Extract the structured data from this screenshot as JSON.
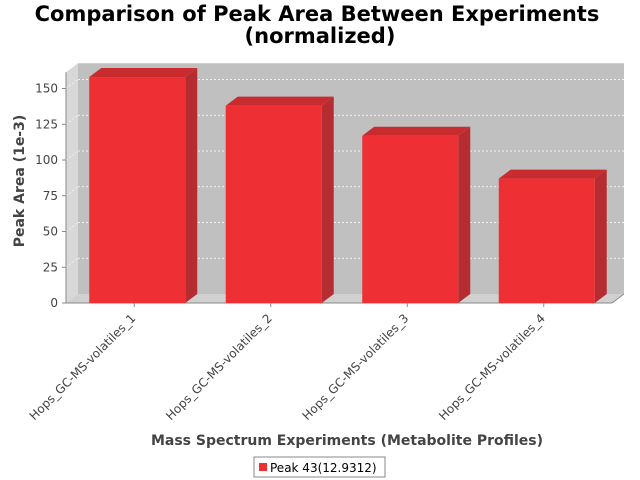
{
  "chart_data": {
    "type": "bar",
    "title_lines": [
      "Comparison of Peak Area Between Experiments",
      "(normalized)"
    ],
    "xlabel": "Mass Spectrum Experiments (Metabolite Profiles)",
    "ylabel": "Peak Area (1e-3)",
    "categories": [
      "Hops_GC-MS-volatiles_1",
      "Hops_GC-MS-volatiles_2",
      "Hops_GC-MS-volatiles_3",
      "Hops_GC-MS-volatiles_4"
    ],
    "series": [
      {
        "name": "Peak 43(12.9312)",
        "values": [
          158,
          138,
          117,
          87
        ]
      }
    ],
    "ylim": [
      0,
      160
    ],
    "yticks": [
      0,
      25,
      50,
      75,
      100,
      125,
      150
    ],
    "grid": true,
    "legend_position": "bottom",
    "colors": {
      "bar_front": "#ee2f33",
      "bar_side": "#b52d30",
      "bar_top": "#c82c2f",
      "plot_bg": "#c0c0c0",
      "wall_side": "#d8d8d8",
      "floor": "#d0d0d0"
    }
  }
}
